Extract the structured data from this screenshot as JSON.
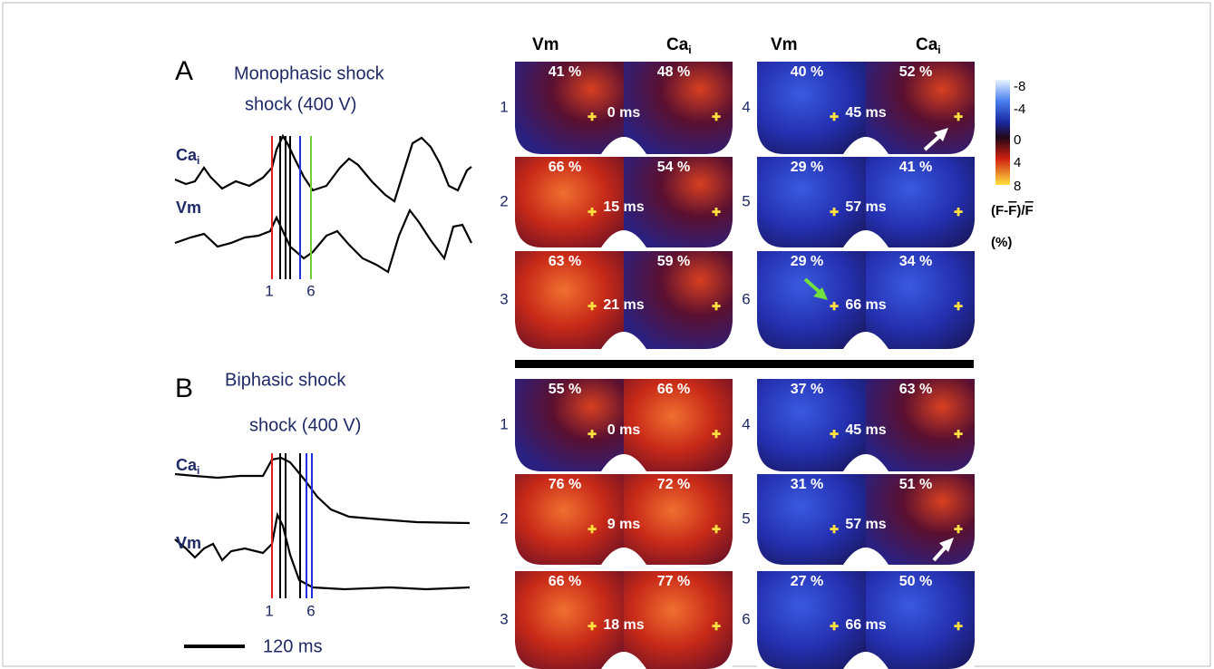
{
  "column_headers": [
    {
      "text": "Vm"
    },
    {
      "text": "Ca",
      "sub": "i"
    },
    {
      "text": "Vm"
    },
    {
      "text": "Ca",
      "sub": "i"
    }
  ],
  "panels": [
    {
      "letter": "A",
      "title": "Monophasic shock",
      "subtitle": "shock (400 V)",
      "traces": [
        {
          "label": "Ca",
          "sub": "i"
        },
        {
          "label": "Vm"
        }
      ],
      "marker_labels": [
        "1",
        "6"
      ],
      "rows": [
        {
          "number": "1",
          "vm": "41 %",
          "ca": "48 %",
          "time": "0 ms"
        },
        {
          "number": "2",
          "vm": "66 %",
          "ca": "54 %",
          "time": "15 ms"
        },
        {
          "number": "3",
          "vm": "63 %",
          "ca": "59 %",
          "time": "21 ms"
        },
        {
          "number": "4",
          "vm": "40 %",
          "ca": "52 %",
          "time": "45 ms"
        },
        {
          "number": "5",
          "vm": "29 %",
          "ca": "41 %",
          "time": "57 ms"
        },
        {
          "number": "6",
          "vm": "29 %",
          "ca": "34 %",
          "time": "66 ms"
        }
      ]
    },
    {
      "letter": "B",
      "title": "Biphasic shock",
      "subtitle": "shock (400 V)",
      "traces": [
        {
          "label": "Ca",
          "sub": "i"
        },
        {
          "label": "Vm"
        }
      ],
      "marker_labels": [
        "1",
        "6"
      ],
      "rows": [
        {
          "number": "1",
          "vm": "55 %",
          "ca": "66 %",
          "time": "0 ms"
        },
        {
          "number": "2",
          "vm": "76 %",
          "ca": "72 %",
          "time": "9 ms"
        },
        {
          "number": "3",
          "vm": "66 %",
          "ca": "77 %",
          "time": "18 ms"
        },
        {
          "number": "4",
          "vm": "37 %",
          "ca": "63 %",
          "time": "45 ms"
        },
        {
          "number": "5",
          "vm": "31 %",
          "ca": "51 %",
          "time": "57 ms"
        },
        {
          "number": "6",
          "vm": "27 %",
          "ca": "50 %",
          "time": "66 ms"
        }
      ]
    }
  ],
  "colorbar": {
    "ticks": [
      "-8",
      "-4",
      "0",
      "4",
      "8"
    ],
    "label_parts": [
      "(F-",
      "F",
      ")/",
      "F"
    ],
    "unit": "(%)"
  },
  "scale_bar": "120 ms"
}
